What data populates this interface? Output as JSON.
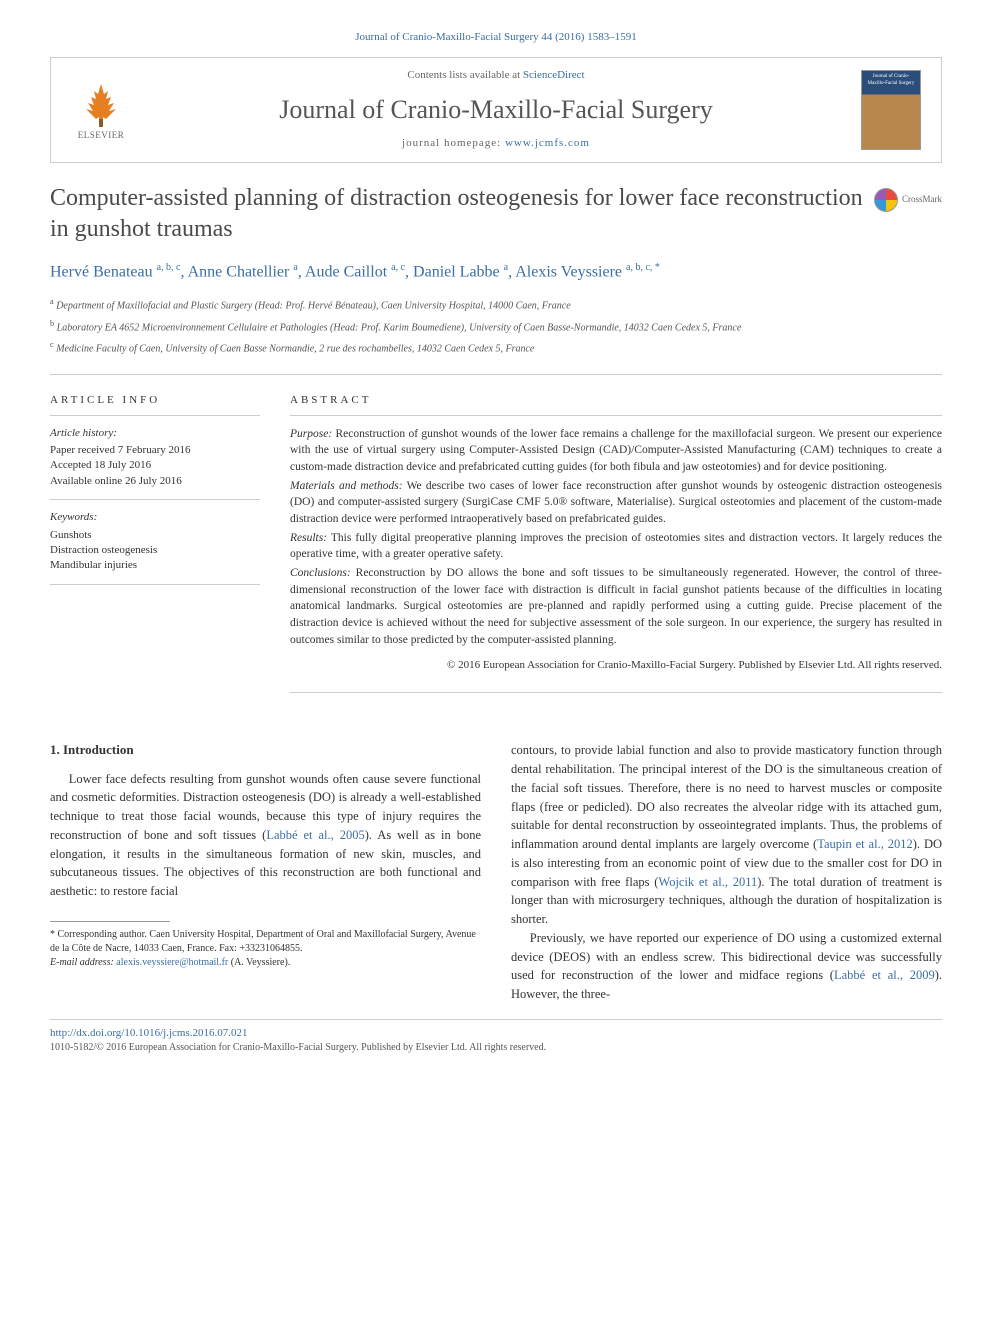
{
  "citation": "Journal of Cranio-Maxillo-Facial Surgery 44 (2016) 1583–1591",
  "header": {
    "contents_prefix": "Contents lists available at ",
    "contents_link": "ScienceDirect",
    "journal_name": "Journal of Cranio-Maxillo-Facial Surgery",
    "homepage_prefix": "journal homepage: ",
    "homepage_link": "www.jcmfs.com",
    "elsevier_label": "ELSEVIER",
    "cover_text": "Journal of Cranio-Maxillo-Facial Surgery"
  },
  "crossmark": "CrossMark",
  "title": "Computer-assisted planning of distraction osteogenesis for lower face reconstruction in gunshot traumas",
  "authors_html": "Hervé Benateau <sup>a, b, c</sup>, Anne Chatellier <sup>a</sup>, Aude Caillot <sup>a, c</sup>, Daniel Labbe <sup>a</sup>, Alexis Veyssiere <sup>a, b, c, *</sup>",
  "affiliations": {
    "a": "Department of Maxillofacial and Plastic Surgery (Head: Prof. Hervé Bénateau), Caen University Hospital, 14000 Caen, France",
    "b": "Laboratory EA 4652 Microenvironnement Cellulaire et Pathologies (Head: Prof. Karim Boumediene), University of Caen Basse-Normandie, 14032 Caen Cedex 5, France",
    "c": "Medicine Faculty of Caen, University of Caen Basse Normandie, 2 rue des rochambelles, 14032 Caen Cedex 5, France"
  },
  "article_info": {
    "heading": "ARTICLE INFO",
    "history_label": "Article history:",
    "received": "Paper received 7 February 2016",
    "accepted": "Accepted 18 July 2016",
    "online": "Available online 26 July 2016",
    "keywords_label": "Keywords:",
    "kw1": "Gunshots",
    "kw2": "Distraction osteogenesis",
    "kw3": "Mandibular injuries"
  },
  "abstract": {
    "heading": "ABSTRACT",
    "purpose_label": "Purpose:",
    "purpose": " Reconstruction of gunshot wounds of the lower face remains a challenge for the maxillofacial surgeon. We present our experience with the use of virtual surgery using Computer-Assisted Design (CAD)/Computer-Assisted Manufacturing (CAM) techniques to create a custom-made distraction device and prefabricated cutting guides (for both fibula and jaw osteotomies) and for device positioning.",
    "methods_label": "Materials and methods:",
    "methods": " We describe two cases of lower face reconstruction after gunshot wounds by osteogenic distraction osteogenesis (DO) and computer-assisted surgery (SurgiCase CMF 5.0® software, Materialise). Surgical osteotomies and placement of the custom-made distraction device were performed intraoperatively based on prefabricated guides.",
    "results_label": "Results:",
    "results": " This fully digital preoperative planning improves the precision of osteotomies sites and distraction vectors. It largely reduces the operative time, with a greater operative safety.",
    "conclusions_label": "Conclusions:",
    "conclusions": " Reconstruction by DO allows the bone and soft tissues to be simultaneously regenerated. However, the control of three-dimensional reconstruction of the lower face with distraction is difficult in facial gunshot patients because of the difficulties in locating anatomical landmarks. Surgical osteotomies are pre-planned and rapidly performed using a cutting guide. Precise placement of the distraction device is achieved without the need for subjective assessment of the sole surgeon. In our experience, the surgery has resulted in outcomes similar to those predicted by the computer-assisted planning.",
    "copyright": "© 2016 European Association for Cranio-Maxillo-Facial Surgery. Published by Elsevier Ltd. All rights reserved."
  },
  "body": {
    "section_num": "1.",
    "section_title": "Introduction",
    "col1_p1": "Lower face defects resulting from gunshot wounds often cause severe functional and cosmetic deformities. Distraction osteogenesis (DO) is already a well-established technique to treat those facial wounds, because this type of injury requires the reconstruction of bone and soft tissues (",
    "col1_link1": "Labbé et al., 2005",
    "col1_p1b": "). As well as in bone elongation, it results in the simultaneous formation of new skin, muscles, and subcutaneous tissues. The objectives of this reconstruction are both functional and aesthetic: to restore facial",
    "col2_p1": "contours, to provide labial function and also to provide masticatory function through dental rehabilitation. The principal interest of the DO is the simultaneous creation of the facial soft tissues. Therefore, there is no need to harvest muscles or composite flaps (free or pedicled). DO also recreates the alveolar ridge with its attached gum, suitable for dental reconstruction by osseointegrated implants. Thus, the problems of inflammation around dental implants are largely overcome (",
    "col2_link1": "Taupin et al., 2012",
    "col2_p1b": "). DO is also interesting from an economic point of view due to the smaller cost for DO in comparison with free flaps (",
    "col2_link2": "Wojcik et al., 2011",
    "col2_p1c": "). The total duration of treatment is longer than with microsurgery techniques, although the duration of hospitalization is shorter.",
    "col2_p2": "Previously, we have reported our experience of DO using a customized external device (DEOS) with an endless screw. This bidirectional device was successfully used for reconstruction of the lower and midface regions (",
    "col2_link3": "Labbé et al., 2009",
    "col2_p2b": "). However, the three-"
  },
  "footnote": {
    "corr": "* Corresponding author. Caen University Hospital, Department of Oral and Maxillofacial Surgery, Avenue de la Côte de Nacre, 14033 Caen, France. Fax: +33231064855.",
    "email_label": "E-mail address:",
    "email": "alexis.veyssiere@hotmail.fr",
    "email_suffix": " (A. Veyssiere)."
  },
  "bottom": {
    "doi": "http://dx.doi.org/10.1016/j.jcms.2016.07.021",
    "issn_copy": "1010-5182/© 2016 European Association for Cranio-Maxillo-Facial Surgery. Published by Elsevier Ltd. All rights reserved."
  }
}
